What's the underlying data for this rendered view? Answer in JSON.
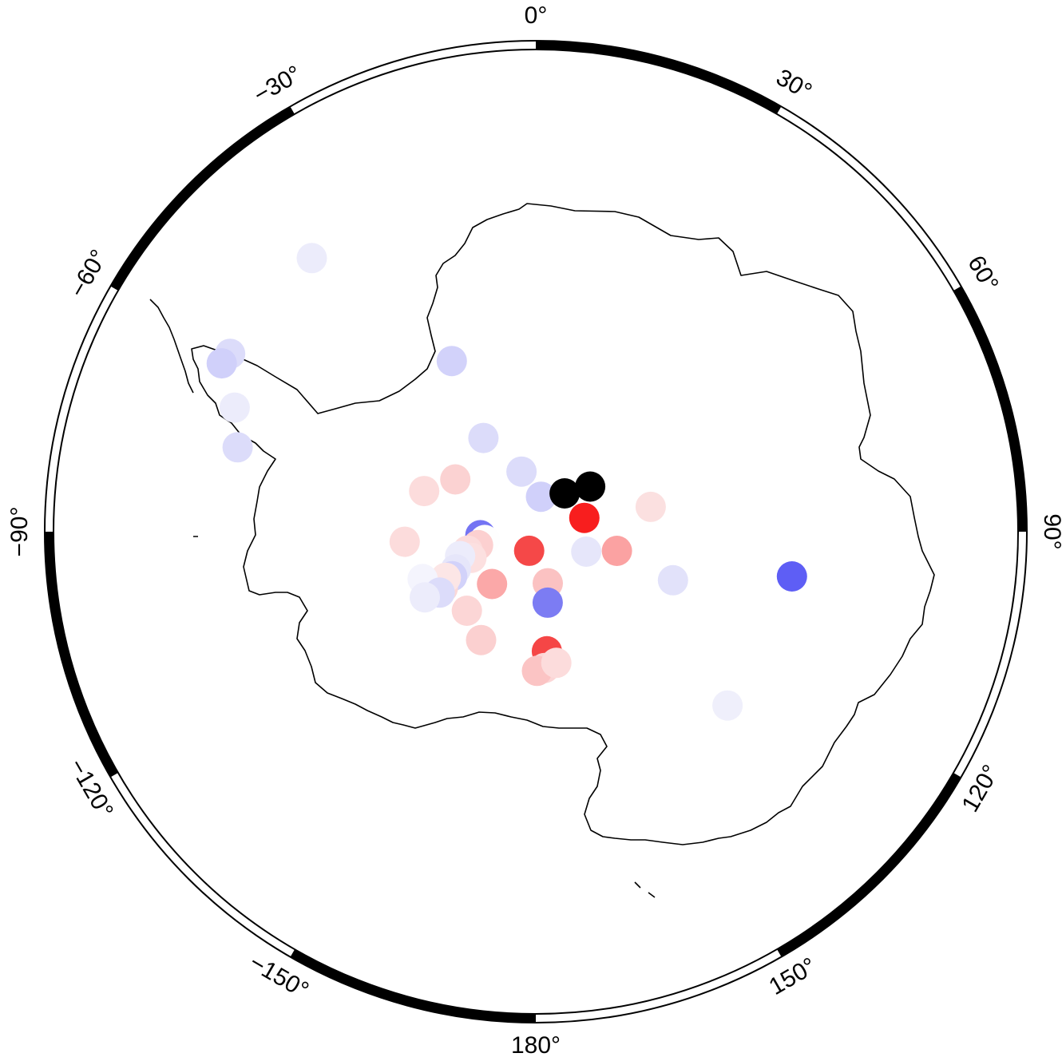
{
  "map": {
    "projection": "south-polar-stereographic",
    "frame_labels": [
      {
        "lon": 0,
        "text": "0°"
      },
      {
        "lon": 30,
        "text": "30°"
      },
      {
        "lon": 60,
        "text": "60°"
      },
      {
        "lon": 90,
        "text": "90°"
      },
      {
        "lon": 120,
        "text": "120°"
      },
      {
        "lon": 150,
        "text": "150°"
      },
      {
        "lon": 180,
        "text": "180°"
      },
      {
        "lon": -150,
        "text": "−150°"
      },
      {
        "lon": -120,
        "text": "−120°"
      },
      {
        "lon": -90,
        "text": "−90°"
      },
      {
        "lon": -60,
        "text": "−60°"
      },
      {
        "lon": -30,
        "text": "−30°"
      }
    ],
    "colors": {
      "frame": "#000000",
      "coastline": "#000000",
      "missing": "#000000",
      "neg_strong": "#5a5af5",
      "pos_strong": "#f81e1e"
    },
    "stations": [
      {
        "lon": -39.3,
        "lat": -62.5,
        "color": "#ececfb"
      },
      {
        "lon": -59.8,
        "lat": -62.5,
        "color": "#dcdcfa"
      },
      {
        "lon": -61.8,
        "lat": -62.3,
        "color": "#d0d0fa"
      },
      {
        "lon": -67.6,
        "lat": -64.6,
        "color": "#ececfb"
      },
      {
        "lon": -74.2,
        "lat": -65.8,
        "color": "#dcdcfa"
      },
      {
        "lon": -26.2,
        "lat": -75.0,
        "color": "#d2d2fa"
      },
      {
        "lon": -29.2,
        "lat": -81.5,
        "color": "#dcdcfa"
      },
      {
        "lon": -70.0,
        "lat": -80.6,
        "color": "#fcdcdc"
      },
      {
        "lon": -57.0,
        "lat": -82.4,
        "color": "#fbd2d2"
      },
      {
        "lon": -13.4,
        "lat": -85.1,
        "color": "#dcdcfa"
      },
      {
        "lon": 8.4,
        "lat": -87.2,
        "color": "#d0d0fa"
      },
      {
        "lon": 36.9,
        "lat": -86.2,
        "color": "#000000"
      },
      {
        "lon": 50.3,
        "lat": -84.4,
        "color": "#000000"
      },
      {
        "lon": 74.1,
        "lat": -86.0,
        "color": "#f81e1e"
      },
      {
        "lon": 77.8,
        "lat": -80.7,
        "color": "#fbe0e0"
      },
      {
        "lon": 103.3,
        "lat": -83.4,
        "color": "#fba2a2"
      },
      {
        "lon": 111.6,
        "lat": -85.7,
        "color": "#e6e6fa"
      },
      {
        "lon": 109.5,
        "lat": -78.5,
        "color": "#e2e2fa"
      },
      {
        "lon": 99.9,
        "lat": -69.6,
        "color": "#5e5ef5"
      },
      {
        "lon": 132.2,
        "lat": -69.7,
        "color": "#efeffb"
      },
      {
        "lon": -160.9,
        "lat": -88.4,
        "color": "#f54848"
      },
      {
        "lon": -93.6,
        "lat": -85.6,
        "color": "#7474f3"
      },
      {
        "lon": -99.2,
        "lat": -85.9,
        "color": "#fefefe"
      },
      {
        "lon": -103.1,
        "lat": -85.3,
        "color": "#fcd0d0"
      },
      {
        "lon": -105.5,
        "lat": -84.4,
        "color": "#fcdcdc"
      },
      {
        "lon": -112.1,
        "lat": -84.5,
        "color": "#fce0e0"
      },
      {
        "lon": -107.8,
        "lat": -83.7,
        "color": "#ececfb"
      },
      {
        "lon": -94.4,
        "lat": -79.6,
        "color": "#fcdcdc"
      },
      {
        "lon": -115.2,
        "lat": -83.0,
        "color": "#e6e6fa"
      },
      {
        "lon": -118.0,
        "lat": -82.5,
        "color": "#d2d2fa"
      },
      {
        "lon": -121.2,
        "lat": -81.4,
        "color": "#fbd8d8"
      },
      {
        "lon": -117.1,
        "lat": -82.0,
        "color": "#fce6e6"
      },
      {
        "lon": -112.7,
        "lat": -80.3,
        "color": "#f4f4fd"
      },
      {
        "lon": -122.4,
        "lat": -81.0,
        "color": "#dcdcfa"
      },
      {
        "lon": -120.6,
        "lat": -79.8,
        "color": "#ececfb"
      },
      {
        "lon": -140.1,
        "lat": -84.6,
        "color": "#fba8a8"
      },
      {
        "lon": -138.9,
        "lat": -81.7,
        "color": "#fcd6d6"
      },
      {
        "lon": -153.2,
        "lat": -80.4,
        "color": "#fbd0d0"
      },
      {
        "lon": 166.9,
        "lat": -85.8,
        "color": "#fbc2c2"
      },
      {
        "lon": 170.5,
        "lat": -84.3,
        "color": "#7c7cf3"
      },
      {
        "lon": 174.7,
        "lat": -80.5,
        "color": "#f54646"
      },
      {
        "lon": 176.3,
        "lat": -79.2,
        "color": "#fcd6d6"
      },
      {
        "lon": 179.5,
        "lat": -79.0,
        "color": "#fbc4c4"
      },
      {
        "lon": 171.1,
        "lat": -79.5,
        "color": "#fcdcdc"
      }
    ]
  }
}
